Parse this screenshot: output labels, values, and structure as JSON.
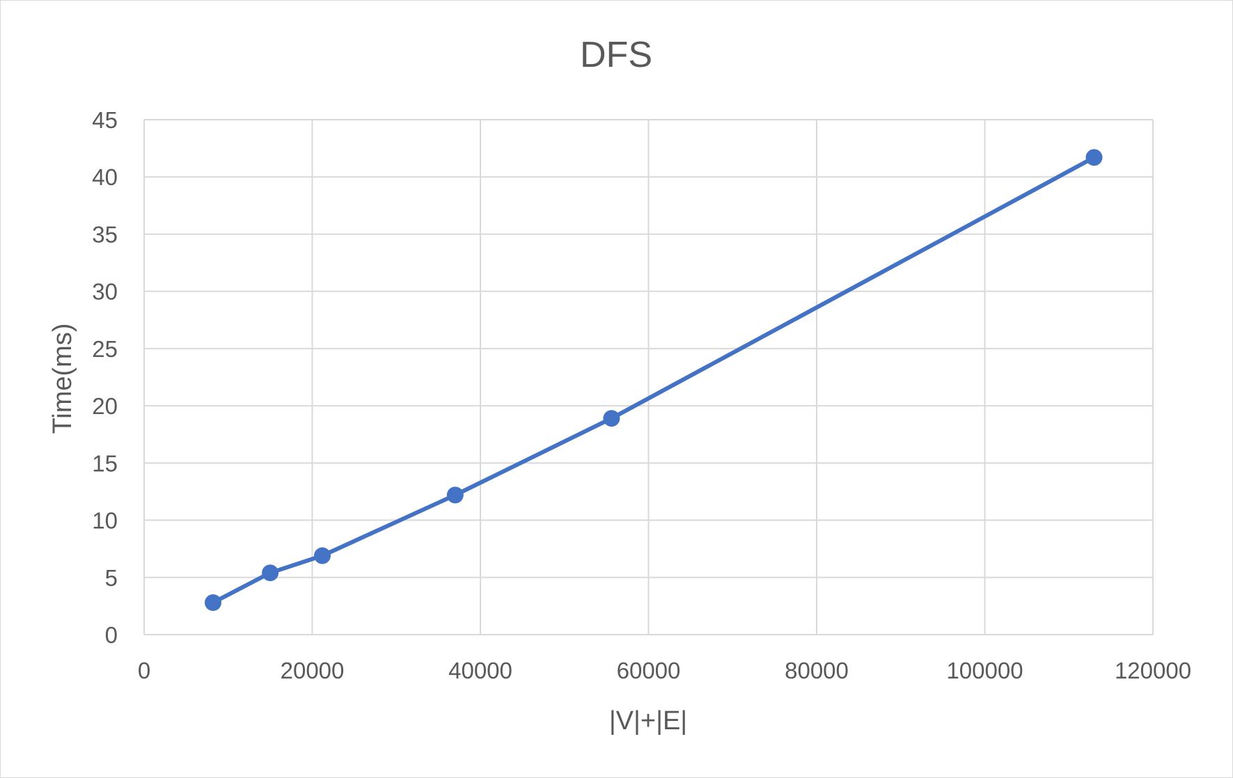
{
  "chart_data": {
    "type": "scatter",
    "title": "DFS",
    "xlabel": "|V|+|E|",
    "ylabel": "Time(ms)",
    "xlim": [
      0,
      120000
    ],
    "ylim": [
      0,
      45
    ],
    "xticks": [
      "0",
      "20000",
      "40000",
      "60000",
      "80000",
      "100000",
      "120000"
    ],
    "yticks": [
      "0",
      "5",
      "10",
      "15",
      "20",
      "25",
      "30",
      "35",
      "40",
      "45"
    ],
    "grid": true,
    "legend": "none",
    "series": [
      {
        "color": "#4472c4",
        "marker": "circle",
        "line": true,
        "x": [
          8200,
          15000,
          21200,
          37000,
          55600,
          113000
        ],
        "y": [
          2.8,
          5.4,
          6.9,
          12.2,
          18.9,
          41.7
        ]
      }
    ]
  }
}
